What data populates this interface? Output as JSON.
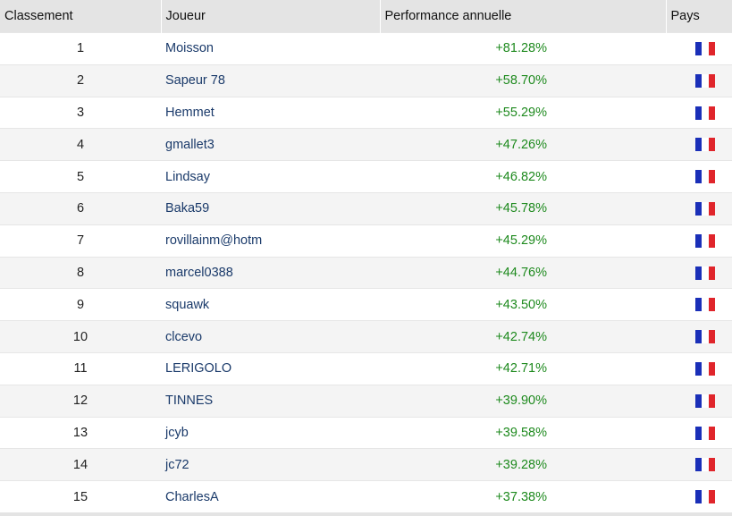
{
  "table": {
    "headers": {
      "rank": "Classement",
      "player": "Joueur",
      "performance": "Performance annuelle",
      "country": "Pays"
    },
    "flag_colors": {
      "blue": "#1a2fb8",
      "white": "#ffffff",
      "red": "#e0252b"
    },
    "flag_icon": "france-flag-icon",
    "rows": [
      {
        "rank": "1",
        "player": "Moisson",
        "performance": "+81.28%"
      },
      {
        "rank": "2",
        "player": "Sapeur 78",
        "performance": "+58.70%"
      },
      {
        "rank": "3",
        "player": "Hemmet",
        "performance": "+55.29%"
      },
      {
        "rank": "4",
        "player": "gmallet3",
        "performance": "+47.26%"
      },
      {
        "rank": "5",
        "player": "Lindsay",
        "performance": "+46.82%"
      },
      {
        "rank": "6",
        "player": "Baka59",
        "performance": "+45.78%"
      },
      {
        "rank": "7",
        "player": "rovillainm@hotm",
        "performance": "+45.29%"
      },
      {
        "rank": "8",
        "player": "marcel0388",
        "performance": "+44.76%"
      },
      {
        "rank": "9",
        "player": "squawk",
        "performance": "+43.50%"
      },
      {
        "rank": "10",
        "player": "clcevo",
        "performance": "+42.74%"
      },
      {
        "rank": "11",
        "player": "LERIGOLO",
        "performance": "+42.71%"
      },
      {
        "rank": "12",
        "player": "TINNES",
        "performance": "+39.90%"
      },
      {
        "rank": "13",
        "player": "jcyb",
        "performance": "+39.58%"
      },
      {
        "rank": "14",
        "player": "jc72",
        "performance": "+39.28%"
      },
      {
        "rank": "15",
        "player": "CharlesA",
        "performance": "+37.38%"
      }
    ]
  }
}
